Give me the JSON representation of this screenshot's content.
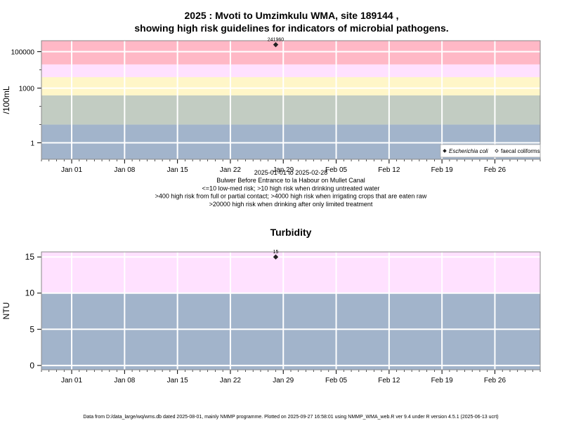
{
  "chart_data": [
    {
      "type": "scatter",
      "title_line1": "2025 : Mvoti to Umzimkulu WMA, site 189144 ,",
      "title_line2": "showing high risk guidelines for indicators of microbial pathogens.",
      "ylabel": "/100mL",
      "y_scale": "log",
      "ylim": [
        0.125,
        400000
      ],
      "yticks": [
        {
          "value": 1,
          "label": "1"
        },
        {
          "value": 1000,
          "label": "1000"
        },
        {
          "value": 100000,
          "label": "100000"
        }
      ],
      "xlim": [
        "2024-12-28",
        "2025-03-04"
      ],
      "xticks": [
        {
          "date": "2025-01-01",
          "label": "Jan 01"
        },
        {
          "date": "2025-01-08",
          "label": "Jan 08"
        },
        {
          "date": "2025-01-15",
          "label": "Jan 15"
        },
        {
          "date": "2025-01-22",
          "label": "Jan 22"
        },
        {
          "date": "2025-01-29",
          "label": "Jan 29"
        },
        {
          "date": "2025-02-05",
          "label": "Feb 05"
        },
        {
          "date": "2025-02-12",
          "label": "Feb 12"
        },
        {
          "date": "2025-02-19",
          "label": "Feb 19"
        },
        {
          "date": "2025-02-26",
          "label": "Feb 26"
        }
      ],
      "bands": [
        {
          "from": 0.125,
          "to": 10,
          "color": "#a2b4cb"
        },
        {
          "from": 10,
          "to": 400,
          "color": "#c2ccc2"
        },
        {
          "from": 400,
          "to": 4000,
          "color": "#fff6c8"
        },
        {
          "from": 4000,
          "to": 20000,
          "color": "#ffe1ff"
        },
        {
          "from": 20000,
          "to": 400000,
          "color": "#ffb8c6"
        }
      ],
      "grid": true,
      "series": [
        {
          "name": "Escherichia coli",
          "marker": "filled-diamond",
          "points": [
            {
              "date": "2025-01-28",
              "value": 241960,
              "label": "241960"
            }
          ]
        },
        {
          "name": "faecal coliforms",
          "marker": "open-diamond",
          "points": []
        }
      ],
      "legend_position": "bottom-right",
      "caption_lines": [
        "2025-01-01 to 2025-02-28",
        "Bulwer Before Entrance to la Habour on Mullet Canal",
        "<=10 low-med risk; >10 high risk when drinking untreated water",
        ">400 high risk from full or partial contact; >4000 high risk when irrigating crops that are eaten raw",
        ">20000 high risk when drinking after only limited treatment"
      ]
    },
    {
      "type": "scatter",
      "title": "Turbidity",
      "ylabel": "NTU",
      "ylim": [
        -0.6,
        15.7
      ],
      "yticks": [
        {
          "value": 0,
          "label": "0"
        },
        {
          "value": 5,
          "label": "5"
        },
        {
          "value": 10,
          "label": "10"
        },
        {
          "value": 15,
          "label": "15"
        }
      ],
      "xlim": [
        "2024-12-28",
        "2025-03-04"
      ],
      "xticks": [
        {
          "date": "2025-01-01",
          "label": "Jan 01"
        },
        {
          "date": "2025-01-08",
          "label": "Jan 08"
        },
        {
          "date": "2025-01-15",
          "label": "Jan 15"
        },
        {
          "date": "2025-01-22",
          "label": "Jan 22"
        },
        {
          "date": "2025-01-29",
          "label": "Jan 29"
        },
        {
          "date": "2025-02-05",
          "label": "Feb 05"
        },
        {
          "date": "2025-02-12",
          "label": "Feb 12"
        },
        {
          "date": "2025-02-19",
          "label": "Feb 19"
        },
        {
          "date": "2025-02-26",
          "label": "Feb 26"
        }
      ],
      "bands": [
        {
          "from": -0.6,
          "to": 10,
          "color": "#a2b4cb"
        },
        {
          "from": 10,
          "to": 15.7,
          "color": "#ffe1ff"
        }
      ],
      "grid": true,
      "series": [
        {
          "marker": "filled-diamond",
          "points": [
            {
              "date": "2025-01-28",
              "value": 15,
              "label": "15"
            }
          ]
        }
      ]
    }
  ],
  "footer": "Data from D:/data_large/wq/wms.db dated 2025-08-01, mainly NMMP programme. Plotted on 2025-09-27 16:58:01 using NMMP_WMA_web.R ver 9.4 under R version 4.5.1 (2025-06-13 ucrt)"
}
